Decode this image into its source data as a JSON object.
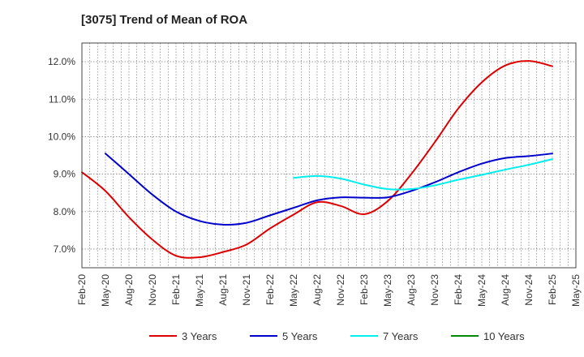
{
  "chart_data": {
    "type": "line",
    "title": "[3075]  Trend of Mean of ROA",
    "xlabel": "",
    "ylabel": "",
    "x": [
      "Feb-20",
      "May-20",
      "Aug-20",
      "Nov-20",
      "Feb-21",
      "May-21",
      "Aug-21",
      "Nov-21",
      "Feb-22",
      "May-22",
      "Aug-22",
      "Nov-22",
      "Feb-23",
      "May-23",
      "Aug-23",
      "Nov-23",
      "Feb-24",
      "May-24",
      "Aug-24",
      "Nov-24",
      "Feb-25",
      "May-25"
    ],
    "y_ticks": [
      7.0,
      8.0,
      9.0,
      10.0,
      11.0,
      12.0
    ],
    "y_tick_labels": [
      "7.0%",
      "8.0%",
      "9.0%",
      "10.0%",
      "11.0%",
      "12.0%"
    ],
    "ylim": [
      6.5,
      12.5
    ],
    "grid": true,
    "legend_position": "bottom",
    "series": [
      {
        "name": "3 Years",
        "color": "#dd0000",
        "values": [
          9.05,
          8.55,
          7.85,
          7.25,
          6.82,
          6.78,
          6.92,
          7.12,
          7.55,
          7.92,
          8.25,
          8.15,
          7.93,
          8.28,
          9.0,
          9.85,
          10.75,
          11.45,
          11.9,
          12.02,
          11.88,
          null
        ]
      },
      {
        "name": "5 Years",
        "color": "#0000cc",
        "values": [
          null,
          9.55,
          9.0,
          8.45,
          8.0,
          7.75,
          7.65,
          7.7,
          7.9,
          8.1,
          8.3,
          8.38,
          8.37,
          8.38,
          8.55,
          8.78,
          9.05,
          9.28,
          9.43,
          9.48,
          9.55,
          null
        ]
      },
      {
        "name": "7 Years",
        "color": "#00eeee",
        "values": [
          null,
          null,
          null,
          null,
          null,
          null,
          null,
          null,
          null,
          8.9,
          8.95,
          8.88,
          8.72,
          8.6,
          8.6,
          8.7,
          8.85,
          8.98,
          9.12,
          9.25,
          9.4,
          null
        ]
      },
      {
        "name": "10 Years",
        "color": "#008800",
        "values": [
          null,
          null,
          null,
          null,
          null,
          null,
          null,
          null,
          null,
          null,
          null,
          null,
          null,
          null,
          null,
          null,
          null,
          null,
          null,
          null,
          null,
          null
        ]
      }
    ]
  }
}
